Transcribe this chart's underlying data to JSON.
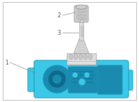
{
  "background_color": "#ffffff",
  "border_color": "#bbbbbb",
  "body_fill": "#3cc8e8",
  "body_edge": "#1a9ab8",
  "body_dark": "#1a8ab0",
  "body_darkest": "#0d6a8a",
  "gray_light": "#d8d8d8",
  "gray_mid": "#c0c0c0",
  "gray_dark": "#999999",
  "label_color": "#444444",
  "label_fontsize": 5.5,
  "label_1": "1",
  "label_2": "2",
  "label_3": "3",
  "figsize": [
    2.0,
    1.47
  ],
  "dpi": 100
}
